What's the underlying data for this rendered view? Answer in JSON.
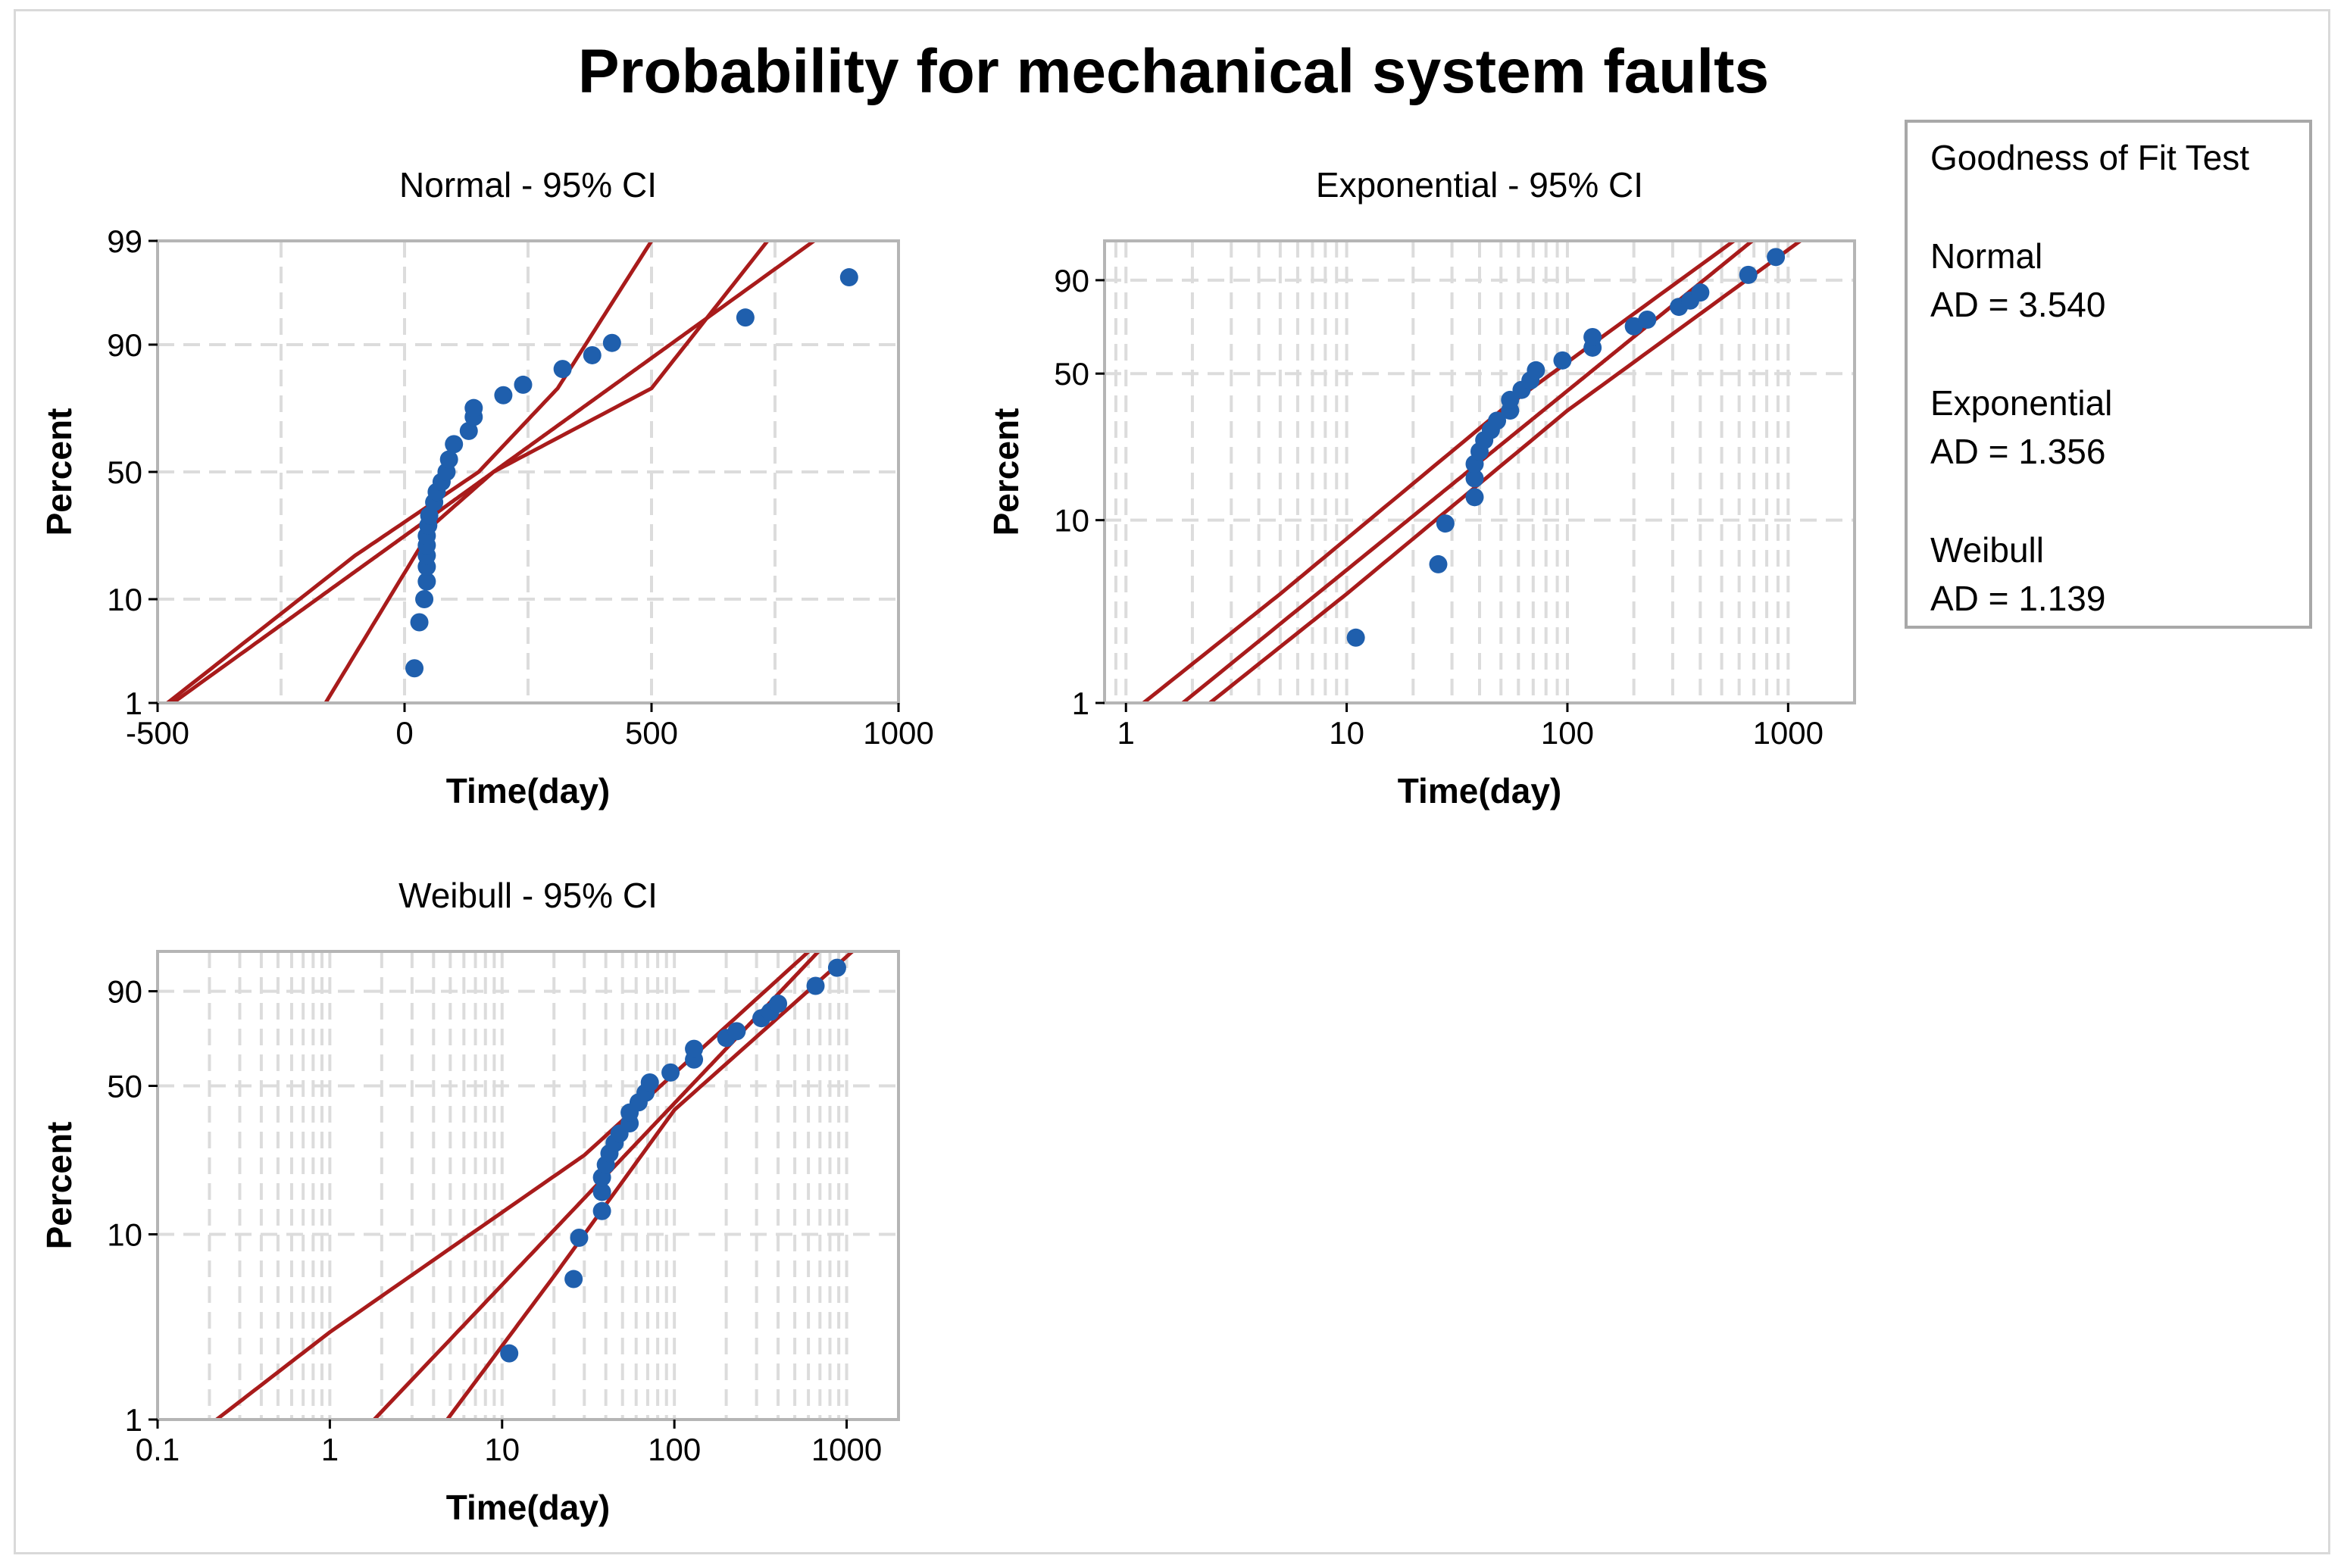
{
  "page": {
    "title": "Probability for mechanical system faults"
  },
  "colors": {
    "fit_line": "#a81b1b",
    "points": "#1f5fad",
    "grid": "#dcdcdc",
    "frame": "#b5b5b5"
  },
  "legend": {
    "title": "Goodness of Fit Test",
    "entries": [
      {
        "name": "Normal",
        "stat": "AD = 3.540"
      },
      {
        "name": "Exponential",
        "stat": "AD = 1.356"
      },
      {
        "name": "Weibull",
        "stat": "AD = 1.139"
      }
    ]
  },
  "chart_data": [
    {
      "type": "scatter",
      "id": "normal",
      "title": "Normal - 95% CI",
      "xlabel": "Time(day)",
      "ylabel": "Percent",
      "xscale": "linear",
      "yscale": "normal-probability",
      "xlim": [
        -500,
        1000
      ],
      "ylim": [
        1,
        99
      ],
      "xticks": [
        -500,
        0,
        500,
        1000
      ],
      "xtick_labels": [
        "-500",
        "0",
        "500",
        "1000"
      ],
      "yticks": [
        1,
        10,
        50,
        90,
        99
      ],
      "ytick_labels": [
        "1",
        "10",
        "50",
        "90",
        "99"
      ],
      "grid": true,
      "points": [
        {
          "x": 20,
          "y": 2.4
        },
        {
          "x": 30,
          "y": 6.5
        },
        {
          "x": 40,
          "y": 10
        },
        {
          "x": 45,
          "y": 13.5
        },
        {
          "x": 45,
          "y": 17
        },
        {
          "x": 45,
          "y": 20
        },
        {
          "x": 45,
          "y": 23
        },
        {
          "x": 45,
          "y": 26
        },
        {
          "x": 48,
          "y": 29.5
        },
        {
          "x": 50,
          "y": 33
        },
        {
          "x": 60,
          "y": 38
        },
        {
          "x": 65,
          "y": 42
        },
        {
          "x": 75,
          "y": 46
        },
        {
          "x": 85,
          "y": 50
        },
        {
          "x": 90,
          "y": 55
        },
        {
          "x": 100,
          "y": 61
        },
        {
          "x": 130,
          "y": 66
        },
        {
          "x": 140,
          "y": 71
        },
        {
          "x": 140,
          "y": 74
        },
        {
          "x": 200,
          "y": 78
        },
        {
          "x": 240,
          "y": 81
        },
        {
          "x": 320,
          "y": 85
        },
        {
          "x": 380,
          "y": 88
        },
        {
          "x": 420,
          "y": 90.3
        },
        {
          "x": 690,
          "y": 94
        },
        {
          "x": 900,
          "y": 97.5
        }
      ],
      "fit": {
        "mean": 180,
        "sd": 279
      },
      "ci_lower": [
        {
          "x": -160,
          "y": 1
        },
        {
          "x": 60,
          "y": 30
        },
        {
          "x": 180,
          "y": 50
        },
        {
          "x": 500,
          "y": 80
        },
        {
          "x": 735,
          "y": 99
        }
      ],
      "ci_upper": [
        {
          "x": -480,
          "y": 1
        },
        {
          "x": -100,
          "y": 20
        },
        {
          "x": 150,
          "y": 50
        },
        {
          "x": 310,
          "y": 80
        },
        {
          "x": 500,
          "y": 99
        }
      ]
    },
    {
      "type": "scatter",
      "id": "exponential",
      "title": "Exponential - 95% CI",
      "xlabel": "Time(day)",
      "ylabel": "Percent",
      "xscale": "log",
      "yscale": "exponential-probability",
      "xlim": [
        0.8,
        2000
      ],
      "ylim": [
        1,
        99
      ],
      "xticks": [
        1,
        10,
        100,
        1000
      ],
      "xtick_labels": [
        "1",
        "10",
        "100",
        "1000"
      ],
      "yticks": [
        1,
        10,
        50,
        90
      ],
      "ytick_labels": [
        "1",
        "10",
        "50",
        "90"
      ],
      "grid": true,
      "points": [
        {
          "x": 11,
          "y": 2.3
        },
        {
          "x": 26,
          "y": 5.8
        },
        {
          "x": 28,
          "y": 9.6
        },
        {
          "x": 38,
          "y": 13.2
        },
        {
          "x": 38,
          "y": 16.5
        },
        {
          "x": 38,
          "y": 19.5
        },
        {
          "x": 40,
          "y": 22.5
        },
        {
          "x": 42,
          "y": 25.5
        },
        {
          "x": 45,
          "y": 28.5
        },
        {
          "x": 48,
          "y": 31.5
        },
        {
          "x": 55,
          "y": 35
        },
        {
          "x": 55,
          "y": 39
        },
        {
          "x": 62,
          "y": 43
        },
        {
          "x": 68,
          "y": 47
        },
        {
          "x": 72,
          "y": 51.5
        },
        {
          "x": 95,
          "y": 56
        },
        {
          "x": 130,
          "y": 62
        },
        {
          "x": 130,
          "y": 67
        },
        {
          "x": 200,
          "y": 72
        },
        {
          "x": 230,
          "y": 75
        },
        {
          "x": 320,
          "y": 80.5
        },
        {
          "x": 360,
          "y": 83
        },
        {
          "x": 400,
          "y": 86
        },
        {
          "x": 660,
          "y": 91.5
        },
        {
          "x": 880,
          "y": 95.5
        }
      ],
      "fit": {
        "mean": 180
      },
      "ci_lower": [
        {
          "x": 2.4,
          "y": 1
        },
        {
          "x": 10,
          "y": 4
        },
        {
          "x": 100,
          "y": 35
        },
        {
          "x": 1400,
          "y": 99
        }
      ],
      "ci_upper": [
        {
          "x": 1.2,
          "y": 1
        },
        {
          "x": 5,
          "y": 4
        },
        {
          "x": 50,
          "y": 35
        },
        {
          "x": 700,
          "y": 99
        }
      ]
    },
    {
      "type": "scatter",
      "id": "weibull",
      "title": "Weibull - 95% CI",
      "xlabel": "Time(day)",
      "ylabel": "Percent",
      "xscale": "log",
      "yscale": "weibull-probability",
      "xlim": [
        0.1,
        2000
      ],
      "ylim": [
        1,
        99
      ],
      "xticks": [
        0.1,
        1,
        10,
        100,
        1000
      ],
      "xtick_labels": [
        "0.1",
        "1",
        "10",
        "100",
        "1000"
      ],
      "yticks": [
        1,
        10,
        50,
        90
      ],
      "ytick_labels": [
        "1",
        "10",
        "50",
        "90"
      ],
      "grid": true,
      "points": [
        {
          "x": 11,
          "y": 2.3
        },
        {
          "x": 26,
          "y": 5.8
        },
        {
          "x": 28,
          "y": 9.6
        },
        {
          "x": 38,
          "y": 13.2
        },
        {
          "x": 38,
          "y": 16.5
        },
        {
          "x": 38,
          "y": 19.5
        },
        {
          "x": 40,
          "y": 22.5
        },
        {
          "x": 42,
          "y": 25.5
        },
        {
          "x": 45,
          "y": 28.5
        },
        {
          "x": 48,
          "y": 31.5
        },
        {
          "x": 55,
          "y": 35
        },
        {
          "x": 55,
          "y": 39
        },
        {
          "x": 62,
          "y": 43
        },
        {
          "x": 68,
          "y": 47
        },
        {
          "x": 72,
          "y": 51.5
        },
        {
          "x": 95,
          "y": 56
        },
        {
          "x": 130,
          "y": 62
        },
        {
          "x": 130,
          "y": 67
        },
        {
          "x": 200,
          "y": 72
        },
        {
          "x": 230,
          "y": 75
        },
        {
          "x": 320,
          "y": 80.5
        },
        {
          "x": 360,
          "y": 83
        },
        {
          "x": 400,
          "y": 86
        },
        {
          "x": 660,
          "y": 91.5
        },
        {
          "x": 880,
          "y": 95.5
        }
      ],
      "fit": {
        "shape": 1.0,
        "scale": 180
      },
      "ci_lower": [
        {
          "x": 4.8,
          "y": 1
        },
        {
          "x": 20,
          "y": 6
        },
        {
          "x": 100,
          "y": 40
        },
        {
          "x": 1350,
          "y": 99
        }
      ],
      "ci_upper": [
        {
          "x": 0.22,
          "y": 1
        },
        {
          "x": 1,
          "y": 3
        },
        {
          "x": 30,
          "y": 25
        },
        {
          "x": 750,
          "y": 99
        }
      ]
    }
  ]
}
